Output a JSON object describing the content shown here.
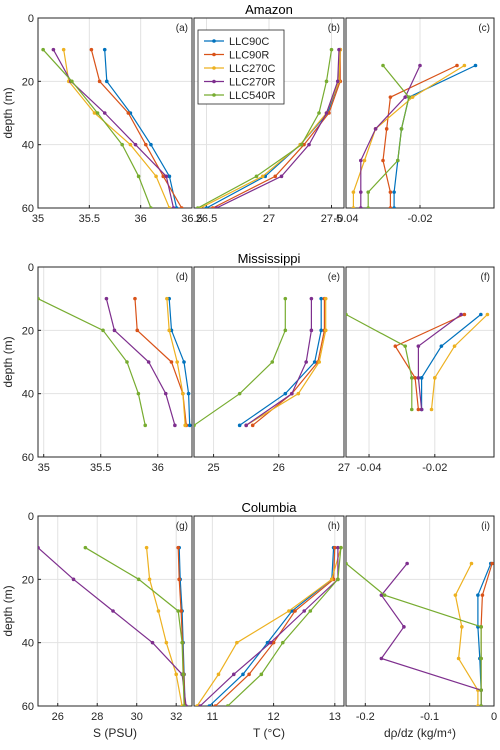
{
  "colors": {
    "LLC90C": "#0072BD",
    "LLC90R": "#D95319",
    "LLC270C": "#EDB120",
    "LLC270R": "#7E2F8E",
    "LLC540R": "#77AC30"
  },
  "legend": {
    "entries": [
      "LLC90C",
      "LLC90R",
      "LLC270C",
      "LLC270R",
      "LLC540R"
    ],
    "location": "top-right of panel (b)"
  },
  "chart_data": [
    {
      "type": "line",
      "panel": "(a)",
      "row_title": "Amazon",
      "xlabel": "",
      "ylabel": "depth (m)",
      "xlim": [
        35,
        36.5
      ],
      "ylim": [
        0,
        60
      ],
      "y_reversed": true,
      "grid": true,
      "xticks": [
        "35",
        "35.5",
        "36",
        "36.5"
      ],
      "yticks": [
        "0",
        "20",
        "40",
        "60"
      ],
      "series": [
        {
          "name": "LLC90C",
          "x": [
            35.65,
            35.67,
            35.9,
            36.1,
            36.28,
            36.35
          ],
          "y": [
            10,
            20,
            30,
            40,
            50,
            60
          ]
        },
        {
          "name": "LLC90R",
          "x": [
            35.52,
            35.6,
            35.88,
            36.05,
            36.22,
            36.4
          ],
          "y": [
            10,
            20,
            30,
            40,
            50,
            60
          ]
        },
        {
          "name": "LLC270C",
          "x": [
            35.25,
            35.3,
            35.55,
            35.9,
            36.15,
            36.28
          ],
          "y": [
            10,
            20,
            30,
            40,
            50,
            60
          ]
        },
        {
          "name": "LLC270R",
          "x": [
            35.15,
            35.32,
            35.65,
            35.95,
            36.25,
            36.32
          ],
          "y": [
            10,
            20,
            30,
            40,
            50,
            60
          ]
        },
        {
          "name": "LLC540R",
          "x": [
            35.05,
            35.33,
            35.58,
            35.82,
            35.98,
            36.1
          ],
          "y": [
            10,
            20,
            30,
            40,
            50,
            60
          ]
        }
      ]
    },
    {
      "type": "line",
      "panel": "(b)",
      "row_title": "",
      "xlabel": "",
      "ylabel": "",
      "xlim": [
        26.4,
        27.6
      ],
      "ylim": [
        0,
        60
      ],
      "y_reversed": true,
      "grid": true,
      "xticks": [
        "26.5",
        "27",
        "27.5"
      ],
      "yticks": [],
      "series": [
        {
          "name": "LLC90C",
          "x": [
            27.57,
            27.56,
            27.47,
            27.25,
            26.97,
            26.5
          ],
          "y": [
            10,
            20,
            30,
            40,
            50,
            60
          ]
        },
        {
          "name": "LLC90R",
          "x": [
            27.57,
            27.57,
            27.48,
            27.28,
            27.05,
            26.55
          ],
          "y": [
            10,
            20,
            30,
            40,
            50,
            60
          ]
        },
        {
          "name": "LLC270C",
          "x": [
            27.57,
            27.56,
            27.46,
            27.25,
            26.95,
            26.45
          ],
          "y": [
            10,
            20,
            30,
            40,
            50,
            60
          ]
        },
        {
          "name": "LLC270R",
          "x": [
            27.56,
            27.55,
            27.46,
            27.32,
            27.1,
            26.58
          ],
          "y": [
            10,
            20,
            30,
            40,
            50,
            60
          ]
        },
        {
          "name": "LLC540R",
          "x": [
            27.5,
            27.46,
            27.4,
            27.26,
            26.9,
            26.43
          ],
          "y": [
            10,
            20,
            30,
            40,
            50,
            60
          ]
        }
      ]
    },
    {
      "type": "line",
      "panel": "(c)",
      "row_title": "",
      "xlabel": "",
      "ylabel": "",
      "xlim": [
        -0.04,
        0
      ],
      "ylim": [
        0,
        60
      ],
      "y_reversed": true,
      "grid": true,
      "xticks": [
        "-0.04",
        "-0.02"
      ],
      "yticks": [],
      "series": [
        {
          "name": "LLC90C",
          "x": [
            -0.005,
            -0.023,
            -0.025,
            -0.026,
            -0.027,
            -0.027
          ],
          "y": [
            15,
            25,
            35,
            45,
            55,
            60
          ]
        },
        {
          "name": "LLC90R",
          "x": [
            -0.01,
            -0.028,
            -0.029,
            -0.03,
            -0.028,
            -0.028
          ],
          "y": [
            15,
            25,
            35,
            45,
            55,
            60
          ]
        },
        {
          "name": "LLC270C",
          "x": [
            -0.008,
            -0.022,
            -0.032,
            -0.035,
            -0.038,
            -0.038
          ],
          "y": [
            15,
            25,
            35,
            45,
            55,
            60
          ]
        },
        {
          "name": "LLC270R",
          "x": [
            -0.02,
            -0.024,
            -0.032,
            -0.036,
            -0.036,
            -0.036
          ],
          "y": [
            15,
            25,
            35,
            45,
            55,
            60
          ]
        },
        {
          "name": "LLC540R",
          "x": [
            -0.03,
            -0.023,
            -0.025,
            -0.026,
            -0.034,
            -0.034
          ],
          "y": [
            15,
            25,
            35,
            45,
            55,
            60
          ]
        }
      ]
    },
    {
      "type": "line",
      "panel": "(d)",
      "row_title": "Mississippi",
      "xlabel": "",
      "ylabel": "depth (m)",
      "xlim": [
        34.95,
        36.3
      ],
      "ylim": [
        0,
        60
      ],
      "y_reversed": true,
      "grid": true,
      "xticks": [
        "35",
        "35.5",
        "36"
      ],
      "yticks": [
        "0",
        "20",
        "40",
        "60"
      ],
      "series": [
        {
          "name": "LLC90C",
          "x": [
            36.1,
            36.12,
            36.23,
            36.27,
            36.28
          ],
          "y": [
            10,
            20,
            30,
            40,
            50
          ]
        },
        {
          "name": "LLC90R",
          "x": [
            35.8,
            35.82,
            36.12,
            36.22,
            36.25
          ],
          "y": [
            10,
            20,
            30,
            40,
            50
          ]
        },
        {
          "name": "LLC270C",
          "x": [
            36.08,
            36.1,
            36.17,
            36.22,
            36.24
          ],
          "y": [
            10,
            20,
            30,
            40,
            50
          ]
        },
        {
          "name": "LLC270R",
          "x": [
            35.55,
            35.62,
            35.92,
            36.07,
            36.15
          ],
          "y": [
            10,
            20,
            30,
            40,
            50
          ]
        },
        {
          "name": "LLC540R",
          "x": [
            34.95,
            35.52,
            35.73,
            35.83,
            35.89
          ],
          "y": [
            10,
            20,
            30,
            40,
            50
          ]
        }
      ]
    },
    {
      "type": "line",
      "panel": "(e)",
      "row_title": "",
      "xlabel": "",
      "ylabel": "",
      "xlim": [
        24.7,
        27
      ],
      "ylim": [
        0,
        60
      ],
      "y_reversed": true,
      "grid": true,
      "xticks": [
        "25",
        "26",
        "27"
      ],
      "yticks": [],
      "series": [
        {
          "name": "LLC90C",
          "x": [
            26.65,
            26.65,
            26.55,
            26.1,
            25.4
          ],
          "y": [
            10,
            20,
            30,
            40,
            50
          ]
        },
        {
          "name": "LLC90R",
          "x": [
            26.7,
            26.7,
            26.6,
            26.2,
            25.6
          ],
          "y": [
            10,
            20,
            30,
            40,
            50
          ]
        },
        {
          "name": "LLC270C",
          "x": [
            26.72,
            26.72,
            26.62,
            26.3,
            25.5
          ],
          "y": [
            10,
            20,
            30,
            40,
            50
          ]
        },
        {
          "name": "LLC270R",
          "x": [
            26.5,
            26.5,
            26.42,
            26.2,
            25.5
          ],
          "y": [
            10,
            20,
            30,
            40,
            50
          ]
        },
        {
          "name": "LLC540R",
          "x": [
            26.1,
            26.1,
            25.9,
            25.4,
            24.7
          ],
          "y": [
            10,
            20,
            30,
            40,
            50
          ]
        }
      ]
    },
    {
      "type": "line",
      "panel": "(f)",
      "row_title": "",
      "xlabel": "",
      "ylabel": "",
      "xlim": [
        -0.047,
        -0.002
      ],
      "ylim": [
        0,
        60
      ],
      "y_reversed": true,
      "grid": true,
      "xticks": [
        "-0.04",
        "-0.02"
      ],
      "yticks": [],
      "series": [
        {
          "name": "LLC90C",
          "x": [
            -0.006,
            -0.018,
            -0.024,
            -0.024
          ],
          "y": [
            15,
            25,
            35,
            45
          ]
        },
        {
          "name": "LLC90R",
          "x": [
            -0.011,
            -0.032,
            -0.026,
            -0.025
          ],
          "y": [
            15,
            25,
            35,
            45
          ]
        },
        {
          "name": "LLC270C",
          "x": [
            -0.004,
            -0.014,
            -0.02,
            -0.021
          ],
          "y": [
            15,
            25,
            35,
            45
          ]
        },
        {
          "name": "LLC270R",
          "x": [
            -0.012,
            -0.025,
            -0.025,
            -0.024
          ],
          "y": [
            15,
            25,
            35,
            45
          ]
        },
        {
          "name": "LLC540R",
          "x": [
            -0.047,
            -0.029,
            -0.027,
            -0.027
          ],
          "y": [
            15,
            25,
            35,
            45
          ]
        }
      ]
    },
    {
      "type": "line",
      "panel": "(g)",
      "row_title": "Columbia",
      "xlabel": "S (PSU)",
      "ylabel": "depth (m)",
      "xlim": [
        25,
        32.8
      ],
      "ylim": [
        0,
        60
      ],
      "y_reversed": true,
      "grid": true,
      "xticks": [
        "26",
        "28",
        "30",
        "32"
      ],
      "yticks": [
        "0",
        "20",
        "40",
        "60"
      ],
      "series": [
        {
          "name": "LLC90C",
          "x": [
            32.15,
            32.2,
            32.3,
            32.35,
            32.4,
            32.45
          ],
          "y": [
            10,
            20,
            30,
            40,
            50,
            60
          ]
        },
        {
          "name": "LLC90R",
          "x": [
            32.1,
            32.15,
            32.25,
            32.32,
            32.38,
            32.45
          ],
          "y": [
            10,
            20,
            30,
            40,
            50,
            60
          ]
        },
        {
          "name": "LLC270C",
          "x": [
            30.5,
            30.65,
            31.1,
            31.5,
            32.0,
            32.3
          ],
          "y": [
            10,
            20,
            30,
            40,
            50,
            60
          ]
        },
        {
          "name": "LLC270R",
          "x": [
            25.0,
            26.8,
            28.8,
            30.8,
            32.3,
            32.5
          ],
          "y": [
            10,
            20,
            30,
            40,
            50,
            60
          ]
        },
        {
          "name": "LLC540R",
          "x": [
            27.4,
            30.1,
            32.1,
            32.3,
            32.35,
            32.4
          ],
          "y": [
            10,
            20,
            30,
            40,
            50,
            60
          ]
        }
      ]
    },
    {
      "type": "line",
      "panel": "(h)",
      "row_title": "",
      "xlabel": "T (°C)",
      "ylabel": "",
      "xlim": [
        10.7,
        13.15
      ],
      "ylim": [
        0,
        60
      ],
      "y_reversed": true,
      "grid": true,
      "xticks": [
        "11",
        "12",
        "13"
      ],
      "yticks": [],
      "series": [
        {
          "name": "LLC90C",
          "x": [
            12.98,
            12.95,
            12.3,
            11.9,
            11.5,
            10.95
          ],
          "y": [
            10,
            20,
            30,
            40,
            50,
            60
          ]
        },
        {
          "name": "LLC90R",
          "x": [
            13.0,
            12.98,
            12.35,
            12.0,
            11.6,
            11.05
          ],
          "y": [
            10,
            20,
            30,
            40,
            50,
            60
          ]
        },
        {
          "name": "LLC270C",
          "x": [
            13.1,
            12.95,
            12.25,
            11.4,
            11.1,
            10.75
          ],
          "y": [
            10,
            20,
            30,
            40,
            50,
            60
          ]
        },
        {
          "name": "LLC270R",
          "x": [
            13.05,
            13.05,
            12.5,
            11.95,
            11.35,
            10.8
          ],
          "y": [
            10,
            20,
            30,
            40,
            50,
            60
          ]
        },
        {
          "name": "LLC540R",
          "x": [
            13.1,
            13.05,
            12.6,
            12.15,
            11.8,
            11.25
          ],
          "y": [
            10,
            20,
            30,
            40,
            50,
            60
          ]
        }
      ]
    },
    {
      "type": "line",
      "panel": "(i)",
      "row_title": "",
      "xlabel": "dρ/dz (kg/m⁴)",
      "ylabel": "",
      "xlim": [
        -0.23,
        0
      ],
      "ylim": [
        0,
        60
      ],
      "y_reversed": true,
      "grid": true,
      "xticks": [
        "-0.2",
        "-0.1",
        "0"
      ],
      "yticks": [],
      "series": [
        {
          "name": "LLC90C",
          "x": [
            -0.005,
            -0.025,
            -0.025,
            -0.022,
            -0.02,
            -0.02
          ],
          "y": [
            15,
            25,
            35,
            45,
            55,
            60
          ]
        },
        {
          "name": "LLC90R",
          "x": [
            -0.003,
            -0.018,
            -0.02,
            -0.02,
            -0.02,
            -0.02
          ],
          "y": [
            15,
            25,
            35,
            45,
            55,
            60
          ]
        },
        {
          "name": "LLC270C",
          "x": [
            -0.035,
            -0.06,
            -0.05,
            -0.055,
            -0.025,
            -0.025
          ],
          "y": [
            15,
            25,
            35,
            45,
            55,
            60
          ]
        },
        {
          "name": "LLC270R",
          "x": [
            -0.135,
            -0.175,
            -0.14,
            -0.175,
            -0.02,
            -0.02
          ],
          "y": [
            15,
            25,
            35,
            45,
            55,
            60
          ]
        },
        {
          "name": "LLC540R",
          "x": [
            -0.23,
            -0.17,
            -0.02,
            -0.02,
            -0.02,
            -0.02
          ],
          "y": [
            15,
            25,
            35,
            45,
            55,
            60
          ]
        }
      ]
    }
  ]
}
